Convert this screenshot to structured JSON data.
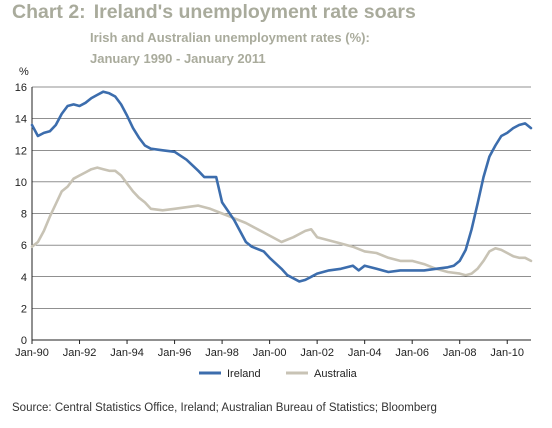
{
  "header": {
    "chart_number": "Chart 2:",
    "title": "Ireland's unemployment rate soars",
    "subtitle_line1": "Irish and Australian unemployment rates (%):",
    "subtitle_line2": "January 1990 - January 2011"
  },
  "source": "Source: Central Statistics Office, Ireland; Australian Bureau of Statistics; Bloomberg",
  "colors": {
    "ireland": "#3c6dad",
    "australia": "#c8c3b5",
    "title": "#a9ab9c",
    "axis": "#222222"
  },
  "chart_data": {
    "type": "line",
    "ylabel": "%",
    "ylim": [
      0,
      16
    ],
    "yticks": [
      0,
      2,
      4,
      6,
      8,
      10,
      12,
      14,
      16
    ],
    "xlim": [
      1990.0,
      2011.0
    ],
    "xticks": [
      {
        "label": "Jan-90",
        "x": 1990
      },
      {
        "label": "Jan-92",
        "x": 1992
      },
      {
        "label": "Jan-94",
        "x": 1994
      },
      {
        "label": "Jan-96",
        "x": 1996
      },
      {
        "label": "Jan-98",
        "x": 1998
      },
      {
        "label": "Jan-00",
        "x": 2000
      },
      {
        "label": "Jan-02",
        "x": 2002
      },
      {
        "label": "Jan-04",
        "x": 2004
      },
      {
        "label": "Jan-06",
        "x": 2006
      },
      {
        "label": "Jan-08",
        "x": 2008
      },
      {
        "label": "Jan-10",
        "x": 2010
      }
    ],
    "grid": "horizontal",
    "legend_position": "bottom",
    "series": [
      {
        "name": "Ireland",
        "color": "#3c6dad",
        "points": [
          [
            1990.0,
            13.6
          ],
          [
            1990.25,
            12.9
          ],
          [
            1990.5,
            13.1
          ],
          [
            1990.75,
            13.2
          ],
          [
            1991.0,
            13.6
          ],
          [
            1991.25,
            14.3
          ],
          [
            1991.5,
            14.8
          ],
          [
            1991.75,
            14.9
          ],
          [
            1992.0,
            14.8
          ],
          [
            1992.25,
            15.0
          ],
          [
            1992.5,
            15.3
          ],
          [
            1992.75,
            15.5
          ],
          [
            1993.0,
            15.7
          ],
          [
            1993.25,
            15.6
          ],
          [
            1993.5,
            15.4
          ],
          [
            1993.75,
            14.9
          ],
          [
            1994.0,
            14.2
          ],
          [
            1994.25,
            13.4
          ],
          [
            1994.5,
            12.8
          ],
          [
            1994.75,
            12.3
          ],
          [
            1995.0,
            12.1
          ],
          [
            1995.5,
            12.0
          ],
          [
            1996.0,
            11.9
          ],
          [
            1996.5,
            11.4
          ],
          [
            1997.0,
            10.7
          ],
          [
            1997.25,
            10.3
          ],
          [
            1997.75,
            10.3
          ],
          [
            1998.0,
            8.7
          ],
          [
            1998.5,
            7.6
          ],
          [
            1999.0,
            6.2
          ],
          [
            1999.25,
            5.9
          ],
          [
            1999.75,
            5.6
          ],
          [
            2000.0,
            5.2
          ],
          [
            2000.5,
            4.5
          ],
          [
            2000.75,
            4.1
          ],
          [
            2001.0,
            3.9
          ],
          [
            2001.25,
            3.7
          ],
          [
            2001.5,
            3.8
          ],
          [
            2001.75,
            4.0
          ],
          [
            2002.0,
            4.2
          ],
          [
            2002.5,
            4.4
          ],
          [
            2003.0,
            4.5
          ],
          [
            2003.5,
            4.7
          ],
          [
            2003.75,
            4.4
          ],
          [
            2004.0,
            4.7
          ],
          [
            2004.5,
            4.5
          ],
          [
            2005.0,
            4.3
          ],
          [
            2005.5,
            4.4
          ],
          [
            2006.0,
            4.4
          ],
          [
            2006.5,
            4.4
          ],
          [
            2007.0,
            4.5
          ],
          [
            2007.5,
            4.6
          ],
          [
            2007.75,
            4.7
          ],
          [
            2008.0,
            5.0
          ],
          [
            2008.25,
            5.7
          ],
          [
            2008.5,
            7.0
          ],
          [
            2008.75,
            8.6
          ],
          [
            2009.0,
            10.3
          ],
          [
            2009.25,
            11.6
          ],
          [
            2009.5,
            12.3
          ],
          [
            2009.75,
            12.9
          ],
          [
            2010.0,
            13.1
          ],
          [
            2010.25,
            13.4
          ],
          [
            2010.5,
            13.6
          ],
          [
            2010.75,
            13.7
          ],
          [
            2011.0,
            13.4
          ]
        ]
      },
      {
        "name": "Australia",
        "color": "#c8c3b5",
        "points": [
          [
            1990.0,
            5.9
          ],
          [
            1990.25,
            6.2
          ],
          [
            1990.5,
            6.9
          ],
          [
            1990.75,
            7.8
          ],
          [
            1991.0,
            8.6
          ],
          [
            1991.25,
            9.4
          ],
          [
            1991.5,
            9.7
          ],
          [
            1991.75,
            10.2
          ],
          [
            1992.0,
            10.4
          ],
          [
            1992.25,
            10.6
          ],
          [
            1992.5,
            10.8
          ],
          [
            1992.75,
            10.9
          ],
          [
            1993.0,
            10.8
          ],
          [
            1993.25,
            10.7
          ],
          [
            1993.5,
            10.7
          ],
          [
            1993.75,
            10.4
          ],
          [
            1994.0,
            9.9
          ],
          [
            1994.25,
            9.4
          ],
          [
            1994.5,
            9.0
          ],
          [
            1994.75,
            8.7
          ],
          [
            1995.0,
            8.3
          ],
          [
            1995.5,
            8.2
          ],
          [
            1996.0,
            8.3
          ],
          [
            1996.5,
            8.4
          ],
          [
            1997.0,
            8.5
          ],
          [
            1997.5,
            8.3
          ],
          [
            1998.0,
            8.0
          ],
          [
            1998.5,
            7.7
          ],
          [
            1999.0,
            7.4
          ],
          [
            1999.5,
            7.0
          ],
          [
            2000.0,
            6.6
          ],
          [
            2000.5,
            6.2
          ],
          [
            2001.0,
            6.5
          ],
          [
            2001.5,
            6.9
          ],
          [
            2001.75,
            7.0
          ],
          [
            2002.0,
            6.5
          ],
          [
            2002.5,
            6.3
          ],
          [
            2003.0,
            6.1
          ],
          [
            2003.5,
            5.9
          ],
          [
            2004.0,
            5.6
          ],
          [
            2004.5,
            5.5
          ],
          [
            2005.0,
            5.2
          ],
          [
            2005.5,
            5.0
          ],
          [
            2006.0,
            5.0
          ],
          [
            2006.5,
            4.8
          ],
          [
            2007.0,
            4.5
          ],
          [
            2007.5,
            4.3
          ],
          [
            2008.0,
            4.2
          ],
          [
            2008.25,
            4.1
          ],
          [
            2008.5,
            4.2
          ],
          [
            2008.75,
            4.5
          ],
          [
            2009.0,
            5.0
          ],
          [
            2009.25,
            5.6
          ],
          [
            2009.5,
            5.8
          ],
          [
            2009.75,
            5.7
          ],
          [
            2010.0,
            5.5
          ],
          [
            2010.25,
            5.3
          ],
          [
            2010.5,
            5.2
          ],
          [
            2010.75,
            5.2
          ],
          [
            2011.0,
            5.0
          ]
        ]
      }
    ]
  }
}
